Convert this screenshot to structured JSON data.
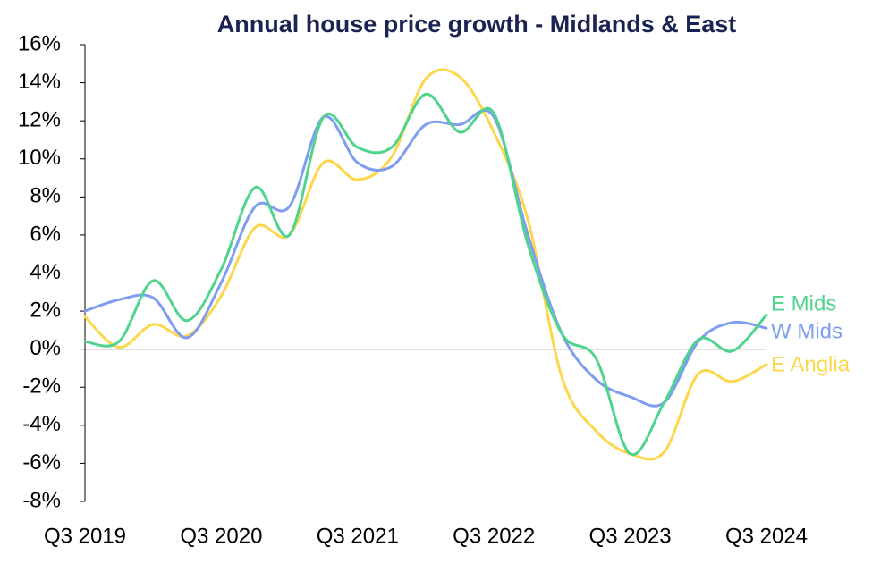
{
  "chart_data": {
    "type": "line",
    "title": "Annual house price growth - Midlands & East",
    "categories": [
      "Q3 2019",
      null,
      null,
      null,
      "Q3 2020",
      null,
      null,
      null,
      "Q3 2021",
      null,
      null,
      null,
      "Q3 2022",
      null,
      null,
      null,
      "Q3 2023",
      null,
      null,
      null,
      "Q3 2024"
    ],
    "series": [
      {
        "name": "E Mids",
        "color": "#4fd48e",
        "values": [
          0.4,
          0.4,
          3.6,
          1.5,
          4.2,
          8.5,
          6.0,
          12.2,
          10.6,
          10.6,
          13.4,
          11.4,
          12.4,
          5.5,
          0.8,
          -0.5,
          -5.5,
          -2.8,
          0.5,
          -0.1,
          1.8
        ]
      },
      {
        "name": "W Mids",
        "color": "#7e9df0",
        "values": [
          2.0,
          2.6,
          2.7,
          0.6,
          3.5,
          7.5,
          7.5,
          12.2,
          9.8,
          9.6,
          11.8,
          11.8,
          12.2,
          6.0,
          0.8,
          -1.6,
          -2.5,
          -2.8,
          0.4,
          1.4,
          1.1
        ]
      },
      {
        "name": "E Anglia",
        "color": "#fcd64b",
        "values": [
          1.7,
          0.1,
          1.3,
          0.7,
          2.8,
          6.4,
          6.0,
          9.8,
          8.9,
          10.1,
          14.2,
          14.3,
          11.4,
          6.8,
          -1.5,
          -4.3,
          -5.5,
          -5.4,
          -1.3,
          -1.7,
          -0.8
        ]
      }
    ],
    "ylim": [
      -8,
      16
    ],
    "yticks": [
      {
        "value": -8,
        "label": "-8%"
      },
      {
        "value": -6,
        "label": "-6%"
      },
      {
        "value": -4,
        "label": "-4%"
      },
      {
        "value": -2,
        "label": "-2%"
      },
      {
        "value": 0,
        "label": "0%"
      },
      {
        "value": 2,
        "label": "2%"
      },
      {
        "value": 4,
        "label": "4%"
      },
      {
        "value": 6,
        "label": "6%"
      },
      {
        "value": 8,
        "label": "8%"
      },
      {
        "value": 10,
        "label": "10%"
      },
      {
        "value": 12,
        "label": "12%"
      },
      {
        "value": 14,
        "label": "14%"
      },
      {
        "value": 16,
        "label": "16%"
      }
    ],
    "grid": false
  }
}
